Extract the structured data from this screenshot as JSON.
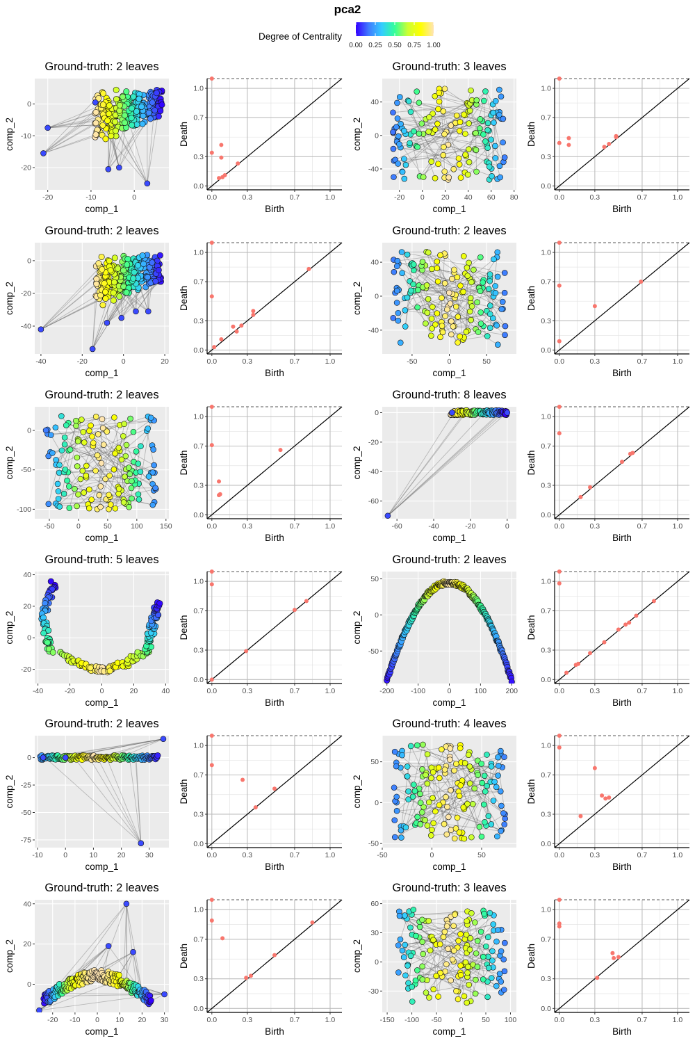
{
  "figure_title": "pca2",
  "legend": {
    "title": "Degree of Centrality",
    "ticks": [
      "0.00",
      "0.25",
      "0.50",
      "0.75",
      "1.00"
    ],
    "gradient": [
      "#3300ff",
      "#3f7cff",
      "#33ccff",
      "#33ff99",
      "#ccff33",
      "#ffff00",
      "#ffe4b5"
    ]
  },
  "colors": {
    "panel_bg": "#ebebeb",
    "grid": "#ffffff",
    "diagram_point": "#f8766d",
    "edge": "#555555"
  },
  "chart_data": [
    {
      "type": "scatter",
      "title": "Ground-truth: 2 leaves",
      "xlabel": "comp_1",
      "ylabel": "comp_2",
      "xlim": [
        -23,
        8
      ],
      "ylim": [
        -27,
        8
      ],
      "xticks": [
        -20,
        -10,
        0
      ],
      "yticks": [
        -20,
        -10,
        0
      ],
      "shape": "blob",
      "key_points": [
        [
          -21,
          -15.5
        ],
        [
          3,
          -25
        ],
        [
          -6,
          -20.5
        ],
        [
          -3.5,
          -20
        ],
        [
          -20,
          -7.5
        ],
        [
          -9,
          0.5
        ]
      ]
    },
    {
      "type": "persistence_diagram",
      "xlabel": "Birth",
      "ylabel": "Death",
      "xticks": [
        0.0,
        0.3,
        0.7,
        1.0
      ],
      "yticks": [
        0.0,
        0.3,
        0.7,
        1.0
      ],
      "points": [
        [
          0.0,
          1.1
        ],
        [
          0.0,
          0.34
        ],
        [
          0.08,
          0.42
        ],
        [
          0.08,
          0.29
        ],
        [
          0.06,
          0.08
        ],
        [
          0.09,
          0.09
        ],
        [
          0.11,
          0.11
        ],
        [
          0.22,
          0.23
        ]
      ]
    },
    {
      "type": "scatter",
      "title": "Ground-truth: 3 leaves",
      "xlabel": "comp_1",
      "ylabel": "comp_2",
      "xlim": [
        -35,
        82
      ],
      "ylim": [
        -65,
        68
      ],
      "xticks": [
        -20,
        0,
        20,
        40,
        60,
        80
      ],
      "yticks": [
        -40,
        0,
        40
      ],
      "shape": "network"
    },
    {
      "type": "persistence_diagram",
      "xlabel": "Birth",
      "ylabel": "Death",
      "xticks": [
        0.0,
        0.3,
        0.7,
        1.0
      ],
      "yticks": [
        0.0,
        0.3,
        0.7,
        1.0
      ],
      "points": [
        [
          0.0,
          1.1
        ],
        [
          0.0,
          0.44
        ],
        [
          0.08,
          0.49
        ],
        [
          0.08,
          0.42
        ],
        [
          0.38,
          0.4
        ],
        [
          0.42,
          0.43
        ],
        [
          0.48,
          0.51
        ],
        [
          0.48,
          0.5
        ]
      ]
    },
    {
      "type": "scatter",
      "title": "Ground-truth: 2 leaves",
      "xlabel": "comp_1",
      "ylabel": "comp_2",
      "xlim": [
        -43,
        22
      ],
      "ylim": [
        -57,
        11
      ],
      "xticks": [
        -40,
        -20,
        0,
        20
      ],
      "yticks": [
        -40,
        -20,
        0
      ],
      "shape": "blob",
      "key_points": [
        [
          -40,
          -42
        ],
        [
          -15,
          -54
        ],
        [
          -8,
          -38
        ],
        [
          -1,
          -35
        ],
        [
          6,
          -31
        ],
        [
          12,
          -31
        ]
      ]
    },
    {
      "type": "persistence_diagram",
      "xlabel": "Birth",
      "ylabel": "Death",
      "xticks": [
        0.0,
        0.3,
        0.7,
        1.0
      ],
      "yticks": [
        0.0,
        0.3,
        0.7,
        1.0
      ],
      "points": [
        [
          0.0,
          1.1
        ],
        [
          0.0,
          0.55
        ],
        [
          0.02,
          0.03
        ],
        [
          0.08,
          0.11
        ],
        [
          0.18,
          0.24
        ],
        [
          0.21,
          0.19
        ],
        [
          0.25,
          0.25
        ],
        [
          0.35,
          0.4
        ],
        [
          0.35,
          0.36
        ],
        [
          0.82,
          0.83
        ]
      ]
    },
    {
      "type": "scatter",
      "title": "Ground-truth: 2 leaves",
      "xlabel": "comp_1",
      "ylabel": "comp_2",
      "xlim": [
        -90,
        90
      ],
      "ylim": [
        -68,
        63
      ],
      "xticks": [
        -50,
        0,
        50
      ],
      "yticks": [
        -40,
        0,
        40
      ],
      "shape": "network"
    },
    {
      "type": "persistence_diagram",
      "xlabel": "Birth",
      "ylabel": "Death",
      "xticks": [
        0.0,
        0.3,
        0.7,
        1.0
      ],
      "yticks": [
        0.0,
        0.3,
        0.7,
        1.0
      ],
      "points": [
        [
          0.0,
          1.1
        ],
        [
          0.0,
          0.66
        ],
        [
          0.0,
          0.09
        ],
        [
          0.3,
          0.45
        ],
        [
          0.69,
          0.7
        ]
      ]
    },
    {
      "type": "scatter",
      "title": "Ground-truth: 2 leaves",
      "xlabel": "comp_1",
      "ylabel": "comp_2",
      "xlim": [
        -75,
        155
      ],
      "ylim": [
        -112,
        30
      ],
      "xticks": [
        -50,
        0,
        50,
        100,
        150
      ],
      "yticks": [
        -100,
        -50,
        0
      ],
      "shape": "network"
    },
    {
      "type": "persistence_diagram",
      "xlabel": "Birth",
      "ylabel": "Death",
      "xticks": [
        0.0,
        0.3,
        0.7,
        1.0
      ],
      "yticks": [
        0.0,
        0.3,
        0.7,
        1.0
      ],
      "points": [
        [
          0.0,
          1.1
        ],
        [
          0.0,
          0.71
        ],
        [
          0.06,
          0.34
        ],
        [
          0.07,
          0.21
        ],
        [
          0.06,
          0.2
        ],
        [
          0.58,
          0.66
        ]
      ]
    },
    {
      "type": "scatter",
      "title": "Ground-truth: 8 leaves",
      "xlabel": "comp_1",
      "ylabel": "comp_2",
      "xlim": [
        -68,
        5
      ],
      "ylim": [
        -72,
        4
      ],
      "xticks": [
        -60,
        -40,
        -20,
        0
      ],
      "yticks": [
        -60,
        -40,
        -20,
        0
      ],
      "shape": "fan",
      "key_points": [
        [
          -65,
          -70
        ],
        [
          -30,
          0
        ],
        [
          0,
          0
        ]
      ]
    },
    {
      "type": "persistence_diagram",
      "xlabel": "Birth",
      "ylabel": "Death",
      "xticks": [
        0.0,
        0.3,
        0.7,
        1.0
      ],
      "yticks": [
        0.0,
        0.3,
        0.7,
        1.0
      ],
      "points": [
        [
          0.0,
          1.1
        ],
        [
          0.0,
          0.83
        ],
        [
          0.18,
          0.18
        ],
        [
          0.26,
          0.28
        ],
        [
          0.53,
          0.54
        ],
        [
          0.6,
          0.62
        ],
        [
          0.62,
          0.63
        ]
      ]
    },
    {
      "type": "scatter",
      "title": "Ground-truth: 5 leaves",
      "xlabel": "comp_1",
      "ylabel": "comp_2",
      "xlim": [
        -42,
        42
      ],
      "ylim": [
        -29,
        42
      ],
      "xticks": [
        -40,
        -20,
        0,
        20,
        40
      ],
      "yticks": [
        -20,
        0,
        20,
        40
      ],
      "shape": "u_curve"
    },
    {
      "type": "persistence_diagram",
      "xlabel": "Birth",
      "ylabel": "Death",
      "xticks": [
        0.0,
        0.3,
        0.7,
        1.0
      ],
      "yticks": [
        0.0,
        0.3,
        0.7,
        1.0
      ],
      "points": [
        [
          0.0,
          1.1
        ],
        [
          0.0,
          0.97
        ],
        [
          0.0,
          0.0
        ],
        [
          0.29,
          0.29
        ],
        [
          0.7,
          0.71
        ],
        [
          0.8,
          0.8
        ]
      ]
    },
    {
      "type": "scatter",
      "title": "Ground-truth: 2 leaves",
      "xlabel": "comp_1",
      "ylabel": "comp_2",
      "xlim": [
        -215,
        215
      ],
      "ylim": [
        -95,
        60
      ],
      "xticks": [
        -200,
        -100,
        0,
        100,
        200
      ],
      "yticks": [
        -50,
        0,
        50
      ],
      "shape": "parabola"
    },
    {
      "type": "persistence_diagram",
      "xlabel": "Birth",
      "ylabel": "Death",
      "xticks": [
        0.0,
        0.3,
        0.7,
        1.0
      ],
      "yticks": [
        0.0,
        0.3,
        0.7,
        1.0
      ],
      "points": [
        [
          0.0,
          1.1
        ],
        [
          0.0,
          0.98
        ],
        [
          0.06,
          0.07
        ],
        [
          0.14,
          0.15
        ],
        [
          0.16,
          0.16
        ],
        [
          0.26,
          0.27
        ],
        [
          0.38,
          0.38
        ],
        [
          0.5,
          0.51
        ],
        [
          0.56,
          0.56
        ],
        [
          0.59,
          0.58
        ],
        [
          0.65,
          0.65
        ],
        [
          0.8,
          0.8
        ]
      ]
    },
    {
      "type": "scatter",
      "title": "Ground-truth: 2 leaves",
      "xlabel": "comp_1",
      "ylabel": "comp_2",
      "xlim": [
        -11,
        37
      ],
      "ylim": [
        -82,
        20
      ],
      "xticks": [
        -10,
        0,
        10,
        20,
        30
      ],
      "yticks": [
        -75,
        -50,
        -25,
        0
      ],
      "shape": "fan_up",
      "key_points": [
        [
          27,
          -78
        ],
        [
          35,
          17
        ],
        [
          -8,
          0
        ],
        [
          0,
          0
        ]
      ]
    },
    {
      "type": "persistence_diagram",
      "xlabel": "Birth",
      "ylabel": "Death",
      "xticks": [
        0.0,
        0.3,
        0.7,
        1.0
      ],
      "yticks": [
        0.0,
        0.3,
        0.7,
        1.0
      ],
      "points": [
        [
          0.0,
          1.1
        ],
        [
          0.0,
          0.8
        ],
        [
          0.26,
          0.65
        ],
        [
          0.37,
          0.37
        ],
        [
          0.53,
          0.56
        ]
      ]
    },
    {
      "type": "scatter",
      "title": "Ground-truth: 4 leaves",
      "xlabel": "comp_1",
      "ylabel": "comp_2",
      "xlim": [
        -50,
        85
      ],
      "ylim": [
        -55,
        82
      ],
      "xticks": [
        -50,
        0,
        50
      ],
      "yticks": [
        -50,
        0,
        50
      ],
      "shape": "network"
    },
    {
      "type": "persistence_diagram",
      "xlabel": "Birth",
      "ylabel": "Death",
      "xticks": [
        0.0,
        0.3,
        0.7,
        1.0
      ],
      "yticks": [
        0.0,
        0.3,
        0.7,
        1.0
      ],
      "points": [
        [
          0.0,
          1.1
        ],
        [
          0.0,
          0.98
        ],
        [
          0.18,
          0.28
        ],
        [
          0.3,
          0.77
        ],
        [
          0.36,
          0.49
        ],
        [
          0.39,
          0.46
        ],
        [
          0.42,
          0.47
        ]
      ]
    },
    {
      "type": "scatter",
      "title": "Ground-truth: 2 leaves",
      "xlabel": "comp_1",
      "ylabel": "comp_2",
      "xlim": [
        -28,
        32
      ],
      "ylim": [
        -14,
        42
      ],
      "xticks": [
        -20,
        -10,
        0,
        10,
        20,
        30
      ],
      "yticks": [
        0,
        20,
        40
      ],
      "shape": "arch",
      "key_points": [
        [
          -26,
          -13
        ],
        [
          13,
          40
        ],
        [
          30,
          -5
        ],
        [
          16,
          16
        ],
        [
          5,
          19
        ]
      ]
    },
    {
      "type": "persistence_diagram",
      "xlabel": "Birth",
      "ylabel": "Death",
      "xticks": [
        0.0,
        0.3,
        0.7,
        1.0
      ],
      "yticks": [
        0.0,
        0.3,
        0.7,
        1.0
      ],
      "points": [
        [
          0.0,
          1.1
        ],
        [
          0.0,
          0.89
        ],
        [
          0.09,
          0.71
        ],
        [
          0.29,
          0.31
        ],
        [
          0.33,
          0.33
        ],
        [
          0.53,
          0.54
        ],
        [
          0.85,
          0.87
        ]
      ]
    },
    {
      "type": "scatter",
      "title": "Ground-truth: 3 leaves",
      "xlabel": "comp_1",
      "ylabel": "comp_2",
      "xlim": [
        -160,
        112
      ],
      "ylim": [
        -52,
        64
      ],
      "xticks": [
        -150,
        -100,
        -50,
        0,
        50,
        100
      ],
      "yticks": [
        -30,
        0,
        30,
        60
      ],
      "shape": "network"
    },
    {
      "type": "persistence_diagram",
      "xlabel": "Birth",
      "ylabel": "Death",
      "xticks": [
        0.0,
        0.3,
        0.7,
        1.0
      ],
      "yticks": [
        0.0,
        0.3,
        0.7,
        1.0
      ],
      "points": [
        [
          0.0,
          1.1
        ],
        [
          0.0,
          0.86
        ],
        [
          0.0,
          0.83
        ],
        [
          0.32,
          0.31
        ],
        [
          0.45,
          0.56
        ],
        [
          0.46,
          0.51
        ],
        [
          0.5,
          0.52
        ]
      ]
    }
  ]
}
